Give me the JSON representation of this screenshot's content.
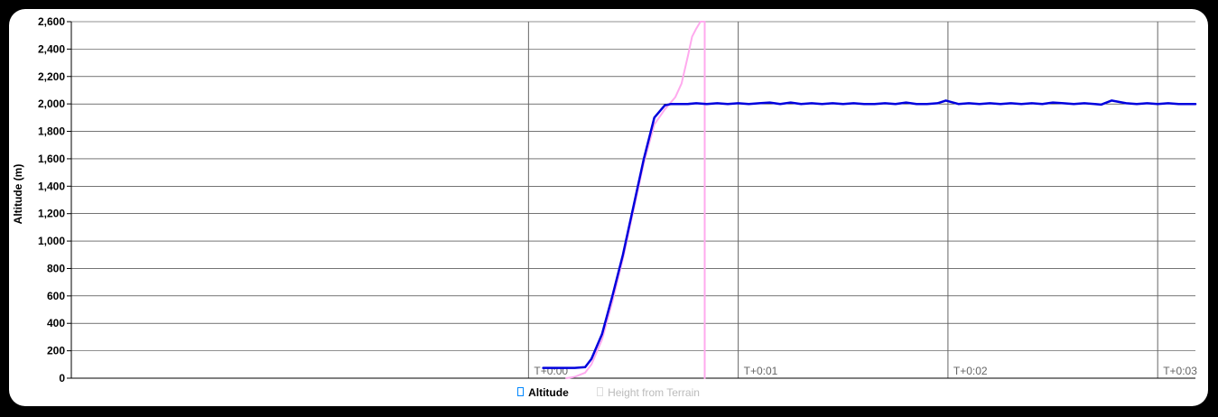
{
  "chart_data": {
    "type": "line",
    "ylabel": "Altitude (m)",
    "xlabel": "",
    "ylim": [
      0,
      2600
    ],
    "yticks": [
      0,
      200,
      400,
      600,
      800,
      1000,
      1200,
      1400,
      1600,
      1800,
      2000,
      2200,
      2400,
      2600
    ],
    "ytick_labels": [
      "0",
      "200",
      "400",
      "600",
      "800",
      "1,000",
      "1,200",
      "1,400",
      "1,600",
      "1,800",
      "2,000",
      "2,200",
      "2,400",
      "2,600"
    ],
    "xlim_minutes": [
      -2.18,
      3.18
    ],
    "xticks": [
      {
        "t": 0,
        "label": "T+0:00"
      },
      {
        "t": 1,
        "label": "T+0:01"
      },
      {
        "t": 2,
        "label": "T+0:02"
      },
      {
        "t": 3,
        "label": "T+0:03"
      }
    ],
    "grid": true,
    "legend_position": "bottom",
    "series": [
      {
        "name": "Altitude",
        "color": "#0000dd",
        "visible": true,
        "x": [
          0.07,
          0.15,
          0.22,
          0.27,
          0.3,
          0.35,
          0.4,
          0.45,
          0.5,
          0.55,
          0.6,
          0.65,
          0.68,
          0.72,
          0.76,
          0.8,
          0.85,
          0.9,
          0.95,
          1.0,
          1.05,
          1.1,
          1.15,
          1.2,
          1.25,
          1.3,
          1.35,
          1.4,
          1.45,
          1.5,
          1.55,
          1.6,
          1.65,
          1.7,
          1.75,
          1.8,
          1.85,
          1.9,
          1.95,
          1.99,
          2.05,
          2.1,
          2.15,
          2.2,
          2.25,
          2.3,
          2.35,
          2.4,
          2.45,
          2.5,
          2.55,
          2.6,
          2.65,
          2.7,
          2.73,
          2.78,
          2.85,
          2.9,
          2.95,
          3.0,
          3.05,
          3.1,
          3.15,
          3.18
        ],
        "y": [
          75,
          75,
          75,
          80,
          140,
          320,
          600,
          900,
          1250,
          1600,
          1900,
          1990,
          2000,
          2000,
          2000,
          2005,
          2000,
          2005,
          2000,
          2005,
          2000,
          2005,
          2010,
          2000,
          2010,
          2000,
          2005,
          2000,
          2005,
          2000,
          2005,
          2000,
          2000,
          2005,
          2000,
          2010,
          2000,
          2000,
          2005,
          2025,
          2000,
          2005,
          2000,
          2005,
          2000,
          2005,
          2000,
          2005,
          2000,
          2010,
          2005,
          2000,
          2005,
          2000,
          1995,
          2025,
          2005,
          2000,
          2005,
          2000,
          2005,
          2000,
          2000,
          2000
        ]
      },
      {
        "name": "Height from Terrain",
        "color": "#ffaaee",
        "visible": false,
        "x": [
          0.18,
          0.22,
          0.27,
          0.3,
          0.35,
          0.4,
          0.45,
          0.5,
          0.55,
          0.6,
          0.65,
          0.7,
          0.73,
          0.76,
          0.78,
          0.8,
          0.82,
          0.83,
          0.84,
          0.84
        ],
        "y": [
          0,
          10,
          40,
          100,
          280,
          560,
          870,
          1220,
          1570,
          1850,
          1960,
          2050,
          2150,
          2350,
          2490,
          2550,
          2600,
          2600,
          2600,
          0
        ]
      }
    ]
  }
}
